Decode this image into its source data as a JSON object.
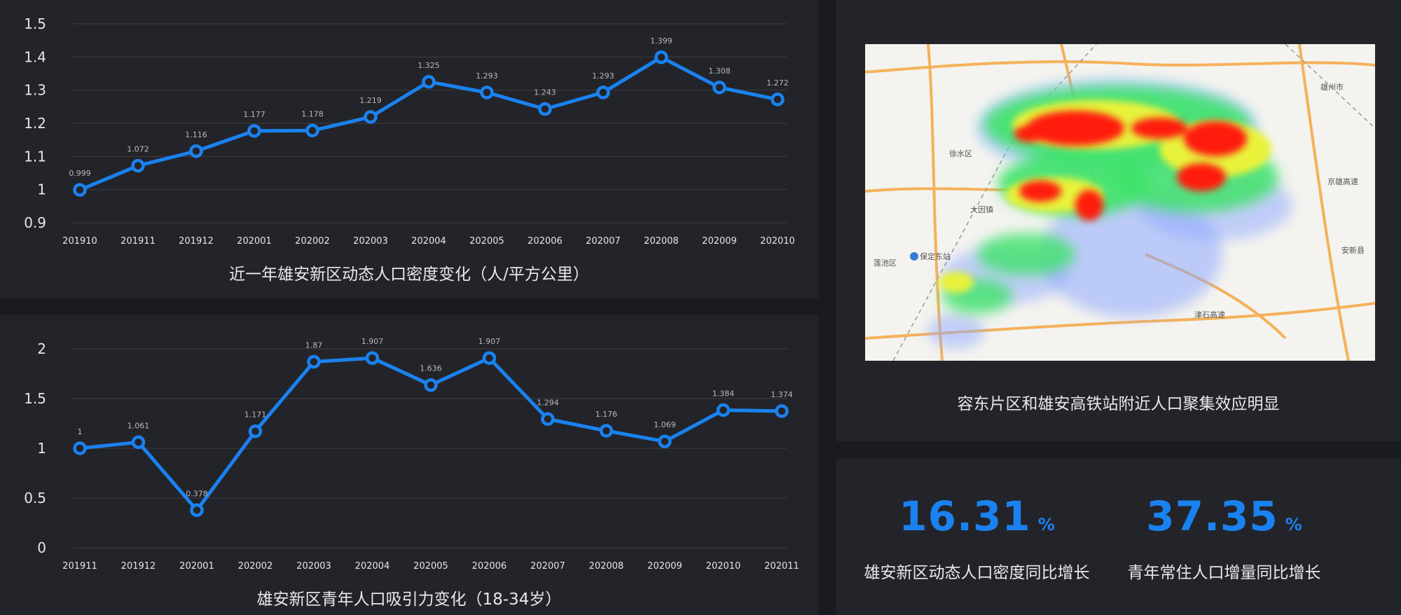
{
  "chart_data": [
    {
      "type": "line",
      "title": "近一年雄安新区动态人口密度变化（人/平方公里）",
      "categories": [
        "201910",
        "201911",
        "201912",
        "202001",
        "202002",
        "202003",
        "202004",
        "202005",
        "202006",
        "202007",
        "202008",
        "202009",
        "202010"
      ],
      "values": [
        0.999,
        1.072,
        1.116,
        1.177,
        1.178,
        1.219,
        1.325,
        1.293,
        1.243,
        1.293,
        1.399,
        1.308,
        1.272
      ],
      "data_labels": [
        "0.999",
        "1.072",
        "1.116",
        "1.177",
        "1.178",
        "1.219",
        "1.325",
        "1.293",
        "1.243",
        "1.293",
        "1.399",
        "1.308",
        "1.272"
      ],
      "yticks": [
        "0.9",
        "1",
        "1.1",
        "1.2",
        "1.3",
        "1.4",
        "1.5"
      ],
      "ylim": [
        0.9,
        1.5
      ],
      "grid": true,
      "color": "#1a82f0"
    },
    {
      "type": "line",
      "title": "雄安新区青年人口吸引力变化（18-34岁）",
      "categories": [
        "201911",
        "201912",
        "202001",
        "202002",
        "202003",
        "202004",
        "202005",
        "202006",
        "202007",
        "202008",
        "202009",
        "202010",
        "202011"
      ],
      "values": [
        1,
        1.061,
        0.378,
        1.171,
        1.87,
        1.907,
        1.636,
        1.907,
        1.294,
        1.176,
        1.069,
        1.384,
        1.374
      ],
      "data_labels": [
        "1",
        "1.061",
        "0.378",
        "1.171",
        "1.87",
        "1.907",
        "1.636",
        "1.907",
        "1.294",
        "1.176",
        "1.069",
        "1.384",
        "1.374"
      ],
      "yticks": [
        "0",
        "0.5",
        "1",
        "1.5",
        "2"
      ],
      "ylim": [
        0,
        2
      ],
      "grid": true,
      "color": "#1a82f0"
    }
  ],
  "map": {
    "caption": "容东片区和雄安高铁站附近人口聚集效应明显",
    "labels": [
      {
        "text": "保定东站"
      },
      {
        "text": "徐水区"
      },
      {
        "text": "雄州市"
      },
      {
        "text": "大因镇"
      },
      {
        "text": "安新县"
      },
      {
        "text": "京雄高速"
      },
      {
        "text": "津石高速"
      },
      {
        "text": "莲池区"
      }
    ]
  },
  "stats": [
    {
      "value": "16.31",
      "unit": "%",
      "label": "雄安新区动态人口密度同比增长"
    },
    {
      "value": "37.35",
      "unit": "%",
      "label": "青年常住人口增量同比增长"
    }
  ]
}
